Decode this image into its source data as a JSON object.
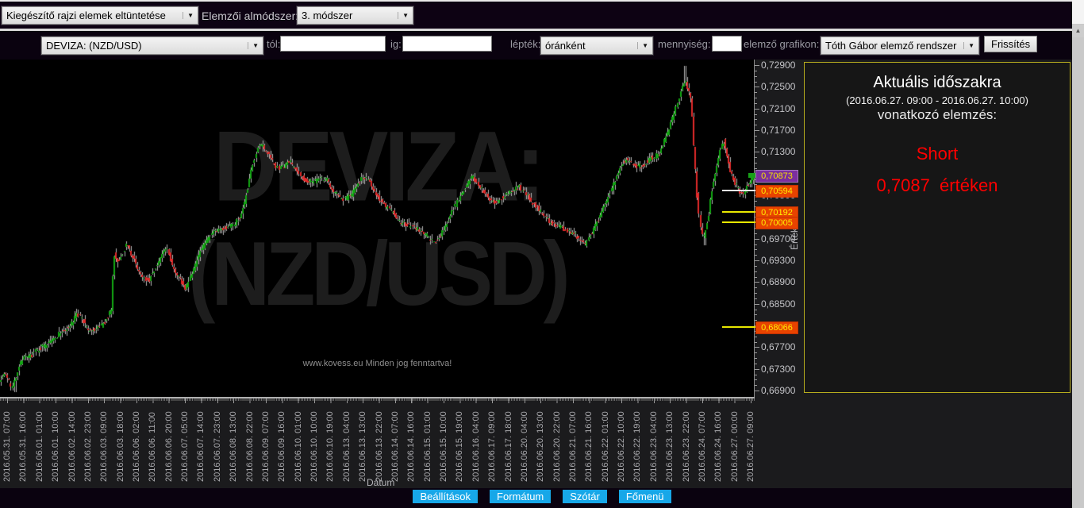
{
  "toolbar_top": {
    "draw_elements_select": "Kiegészítő rajzi elemek eltüntetése",
    "submethod_label": "Elemzői almódszer:",
    "submethod_select": "3. módszer"
  },
  "toolbar_main": {
    "pair_select": "DEVIZA: (NZD/USD)",
    "from_label": "tól:",
    "to_label": "ig:",
    "scale_label": "lépték:",
    "scale_select": "óránként",
    "quantity_label": "mennyiség:",
    "analyzer_label": "elemző grafikon:",
    "analyzer_select": "Tóth Gábor elemző rendszer",
    "refresh_button": "Frissítés"
  },
  "chart": {
    "watermark_line1": "DEVIZA:",
    "watermark_line2": "(NZD/USD)",
    "copyright": "www.kovess.eu Minden jog fenntartva!",
    "x_axis_label": "Dátum",
    "y_axis_label": "Érték"
  },
  "analysis_panel": {
    "title": "Aktuális időszakra",
    "period": "(2016.06.27. 09:00 - 2016.06.27. 10:00)",
    "subtitle": "vonatkozó elemzés:",
    "signal": "Short",
    "value_text": "0,7087  értéken",
    "signal_color": "#ff0000",
    "border_color": "#b6ac1e"
  },
  "footer": {
    "buttons": [
      "Beállítások",
      "Formátum",
      "Szótár",
      "Főmenü"
    ],
    "accent_color": "#17a7e8"
  },
  "chart_data": {
    "type": "candlestick",
    "pair": "NZD/USD",
    "interval": "hourly",
    "up_color": "#13a713",
    "down_color": "#e12a2a",
    "wick_color": "#b4b4b4",
    "y_range": [
      0.669,
      0.729
    ],
    "y_ticks": [
      "0,72900",
      "0,72500",
      "0,72100",
      "0,71700",
      "0,71300",
      "0,70900",
      "0,70500",
      "0,70100",
      "0,69700",
      "0,69300",
      "0,68900",
      "0,68500",
      "0,68100",
      "0,67700",
      "0,67300",
      "0,66900"
    ],
    "x_labels": [
      "2016.05.31. 07:00",
      "2016.05.31. 16:00",
      "2016.06.01. 01:00",
      "2016.06.01. 10:00",
      "2016.06.02. 14:00",
      "2016.06.02. 23:00",
      "2016.06.03. 09:00",
      "2016.06.03. 18:00",
      "2016.06.06. 02:00",
      "2016.06.06. 11:00",
      "2016.06.06. 20:00",
      "2016.06.07. 05:00",
      "2016.06.07. 14:00",
      "2016.06.07. 23:00",
      "2016.06.08. 13:00",
      "2016.06.08. 22:00",
      "2016.06.09. 07:00",
      "2016.06.09. 16:00",
      "2016.06.10. 01:00",
      "2016.06.10. 10:00",
      "2016.06.10. 19:00",
      "2016.06.13. 04:00",
      "2016.06.13. 13:00",
      "2016.06.13. 22:00",
      "2016.06.14. 07:00",
      "2016.06.14. 16:00",
      "2016.06.15. 01:00",
      "2016.06.15. 10:00",
      "2016.06.15. 19:00",
      "2016.06.16. 04:00",
      "2016.06.17. 09:00",
      "2016.06.17. 18:00",
      "2016.06.20. 04:00",
      "2016.06.20. 13:00",
      "2016.06.20. 22:00",
      "2016.06.21. 07:00",
      "2016.06.21. 16:00",
      "2016.06.22. 01:00",
      "2016.06.22. 10:00",
      "2016.06.22. 19:00",
      "2016.06.23. 04:00",
      "2016.06.23. 13:00",
      "2016.06.23. 22:00",
      "2016.06.24. 07:00",
      "2016.06.24. 16:00",
      "2016.06.27. 00:00",
      "2016.06.27. 09:00"
    ],
    "price_markers": [
      {
        "label": "0,70873",
        "price": 0.70873,
        "bg": "#7b2f9e",
        "border": "#a576bf",
        "text": "#f4e400",
        "line": null,
        "tick": "#18a018"
      },
      {
        "label": "0,70594",
        "price": 0.70594,
        "bg": "#e84300",
        "border": "#c03000",
        "text": "#ffee00",
        "line": "#e8e8e8",
        "tick": null
      },
      {
        "label": "0,70192",
        "price": 0.70192,
        "bg": "#e84300",
        "border": "#c03000",
        "text": "#ffee00",
        "line": "#e8e800",
        "tick": null
      },
      {
        "label": "0,70005",
        "price": 0.70005,
        "bg": "#e84300",
        "border": "#c03000",
        "text": "#ffee00",
        "line": "#e8e800",
        "tick": null
      },
      {
        "label": "0,68066",
        "price": 0.68066,
        "bg": "#e84300",
        "border": "#c03000",
        "text": "#ffee00",
        "line": "#e8e800",
        "tick": null
      }
    ],
    "wick_events": [
      {
        "x": 17,
        "low": 0.6687
      },
      {
        "x": 862,
        "high": 0.7288
      },
      {
        "x": 887,
        "low": 0.6958
      }
    ],
    "price_path": [
      [
        0,
        0.671
      ],
      [
        8,
        0.6722
      ],
      [
        14,
        0.67
      ],
      [
        17,
        0.6695
      ],
      [
        22,
        0.6725
      ],
      [
        30,
        0.6752
      ],
      [
        36,
        0.6748
      ],
      [
        42,
        0.6758
      ],
      [
        50,
        0.6768
      ],
      [
        58,
        0.6772
      ],
      [
        66,
        0.6782
      ],
      [
        75,
        0.6795
      ],
      [
        85,
        0.6805
      ],
      [
        93,
        0.6815
      ],
      [
        98,
        0.6833
      ],
      [
        105,
        0.682
      ],
      [
        112,
        0.6798
      ],
      [
        120,
        0.6802
      ],
      [
        128,
        0.6808
      ],
      [
        135,
        0.682
      ],
      [
        140,
        0.6838
      ],
      [
        142,
        0.684
      ],
      [
        144,
        0.6944
      ],
      [
        150,
        0.6928
      ],
      [
        155,
        0.694
      ],
      [
        160,
        0.6962
      ],
      [
        165,
        0.6945
      ],
      [
        170,
        0.693
      ],
      [
        175,
        0.6912
      ],
      [
        180,
        0.69
      ],
      [
        188,
        0.6892
      ],
      [
        194,
        0.691
      ],
      [
        200,
        0.6925
      ],
      [
        206,
        0.6942
      ],
      [
        211,
        0.6952
      ],
      [
        218,
        0.692
      ],
      [
        224,
        0.6905
      ],
      [
        230,
        0.689
      ],
      [
        235,
        0.6877
      ],
      [
        240,
        0.6898
      ],
      [
        246,
        0.692
      ],
      [
        252,
        0.6942
      ],
      [
        258,
        0.6958
      ],
      [
        265,
        0.6975
      ],
      [
        272,
        0.6982
      ],
      [
        280,
        0.6986
      ],
      [
        288,
        0.6992
      ],
      [
        295,
        0.6996
      ],
      [
        302,
        0.7008
      ],
      [
        308,
        0.703
      ],
      [
        314,
        0.707
      ],
      [
        320,
        0.711
      ],
      [
        326,
        0.7138
      ],
      [
        331,
        0.7142
      ],
      [
        338,
        0.7126
      ],
      [
        345,
        0.711
      ],
      [
        352,
        0.7098
      ],
      [
        360,
        0.7105
      ],
      [
        366,
        0.7112
      ],
      [
        373,
        0.7098
      ],
      [
        380,
        0.7086
      ],
      [
        388,
        0.7076
      ],
      [
        396,
        0.7074
      ],
      [
        404,
        0.7082
      ],
      [
        412,
        0.708
      ],
      [
        420,
        0.706
      ],
      [
        428,
        0.7048
      ],
      [
        436,
        0.7043
      ],
      [
        444,
        0.7052
      ],
      [
        452,
        0.7072
      ],
      [
        458,
        0.7082
      ],
      [
        465,
        0.708
      ],
      [
        472,
        0.706
      ],
      [
        480,
        0.704
      ],
      [
        488,
        0.7028
      ],
      [
        496,
        0.7018
      ],
      [
        504,
        0.7002
      ],
      [
        512,
        0.6996
      ],
      [
        520,
        0.6993
      ],
      [
        528,
        0.6988
      ],
      [
        535,
        0.698
      ],
      [
        542,
        0.6972
      ],
      [
        548,
        0.6963
      ],
      [
        555,
        0.6975
      ],
      [
        562,
        0.6993
      ],
      [
        570,
        0.7018
      ],
      [
        578,
        0.704
      ],
      [
        585,
        0.706
      ],
      [
        592,
        0.7076
      ],
      [
        597,
        0.7084
      ],
      [
        603,
        0.7072
      ],
      [
        610,
        0.7058
      ],
      [
        617,
        0.7045
      ],
      [
        625,
        0.7037
      ],
      [
        632,
        0.7044
      ],
      [
        640,
        0.7052
      ],
      [
        648,
        0.706
      ],
      [
        655,
        0.7066
      ],
      [
        662,
        0.7054
      ],
      [
        670,
        0.704
      ],
      [
        678,
        0.7028
      ],
      [
        686,
        0.7014
      ],
      [
        694,
        0.7001
      ],
      [
        702,
        0.6994
      ],
      [
        710,
        0.699
      ],
      [
        718,
        0.6984
      ],
      [
        726,
        0.6977
      ],
      [
        733,
        0.6968
      ],
      [
        738,
        0.696
      ],
      [
        744,
        0.6975
      ],
      [
        750,
        0.6992
      ],
      [
        757,
        0.7012
      ],
      [
        764,
        0.7035
      ],
      [
        771,
        0.706
      ],
      [
        778,
        0.7088
      ],
      [
        784,
        0.7106
      ],
      [
        790,
        0.7117
      ],
      [
        796,
        0.7108
      ],
      [
        802,
        0.7103
      ],
      [
        808,
        0.7104
      ],
      [
        814,
        0.711
      ],
      [
        820,
        0.7118
      ],
      [
        826,
        0.7122
      ],
      [
        832,
        0.7128
      ],
      [
        838,
        0.7152
      ],
      [
        844,
        0.717
      ],
      [
        850,
        0.72
      ],
      [
        855,
        0.7225
      ],
      [
        860,
        0.7248
      ],
      [
        865,
        0.7262
      ],
      [
        869,
        0.724
      ],
      [
        872,
        0.722
      ],
      [
        875,
        0.715
      ],
      [
        878,
        0.708
      ],
      [
        881,
        0.702
      ],
      [
        884,
        0.6985
      ],
      [
        887,
        0.697
      ],
      [
        890,
        0.699
      ],
      [
        894,
        0.7015
      ],
      [
        898,
        0.706
      ],
      [
        902,
        0.7085
      ],
      [
        906,
        0.712
      ],
      [
        910,
        0.7145
      ],
      [
        913,
        0.715
      ],
      [
        916,
        0.7128
      ],
      [
        920,
        0.71
      ],
      [
        924,
        0.7085
      ],
      [
        928,
        0.707
      ],
      [
        932,
        0.706
      ],
      [
        936,
        0.7052
      ],
      [
        940,
        0.706
      ],
      [
        944,
        0.707
      ],
      [
        947,
        0.708
      ],
      [
        950,
        0.70873
      ]
    ]
  }
}
